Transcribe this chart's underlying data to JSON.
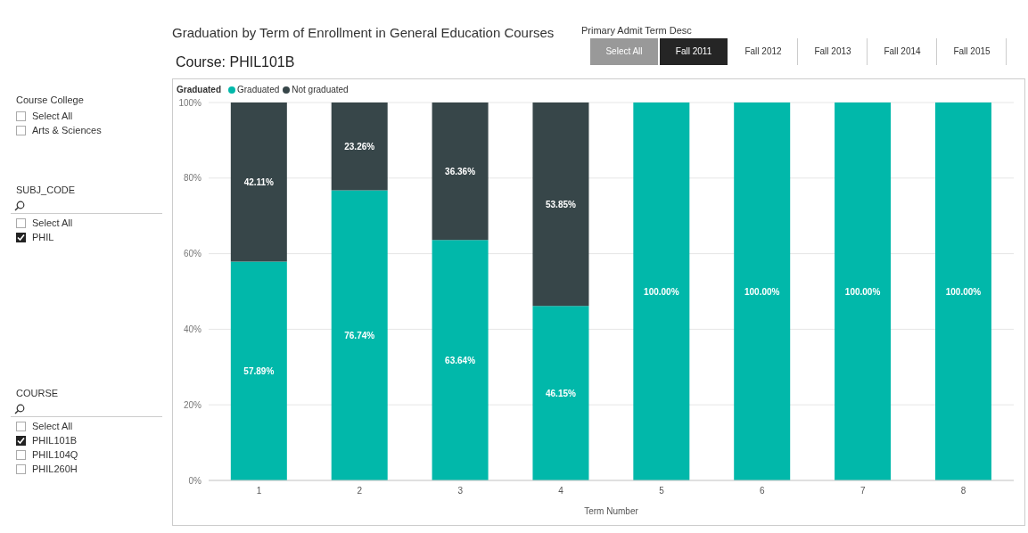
{
  "chart_data": {
    "type": "bar",
    "title": "Graduation by Term of Enrollment in General Education Courses",
    "subtitle": "Course: PHIL101B",
    "xlabel": "Term Number",
    "legend_title": "Graduated",
    "categories": [
      "1",
      "2",
      "3",
      "4",
      "5",
      "6",
      "7",
      "8"
    ],
    "series": [
      {
        "name": "Graduated",
        "color": "#01b8aa",
        "values": [
          57.89,
          76.74,
          63.64,
          46.15,
          100,
          100,
          100,
          100
        ],
        "value_labels": [
          "57.89%",
          "76.74%",
          "63.64%",
          "46.15%",
          "100.00%",
          "100.00%",
          "100.00%",
          "100.00%"
        ]
      },
      {
        "name": "Not graduated",
        "color": "#374649",
        "values": [
          42.11,
          23.26,
          36.36,
          53.85,
          0,
          0,
          0,
          0
        ],
        "value_labels": [
          "42.11%",
          "23.26%",
          "36.36%",
          "53.85%",
          null,
          null,
          null,
          null
        ]
      }
    ],
    "stacked": true,
    "ylim": [
      0,
      100
    ],
    "yticks": [
      {
        "value": 0,
        "label": "0%"
      },
      {
        "value": 20,
        "label": "20%"
      },
      {
        "value": 40,
        "label": "40%"
      },
      {
        "value": 60,
        "label": "60%"
      },
      {
        "value": 80,
        "label": "80%"
      },
      {
        "value": 100,
        "label": "100%"
      }
    ],
    "grid": "y",
    "legend": "top left",
    "annotations": [
      "Course College",
      "Select All",
      "Arts & Sciences",
      "SUBJ_CODE",
      "Select All",
      "PHIL",
      "COURSE",
      "Select All",
      "PHIL101B",
      "PHIL104Q",
      "PHIL260H",
      "Primary Admit Term Desc",
      "Select All",
      "Fall 2011",
      "Fall 2012",
      "Fall 2013",
      "Fall 2014",
      "Fall 2015"
    ]
  }
}
